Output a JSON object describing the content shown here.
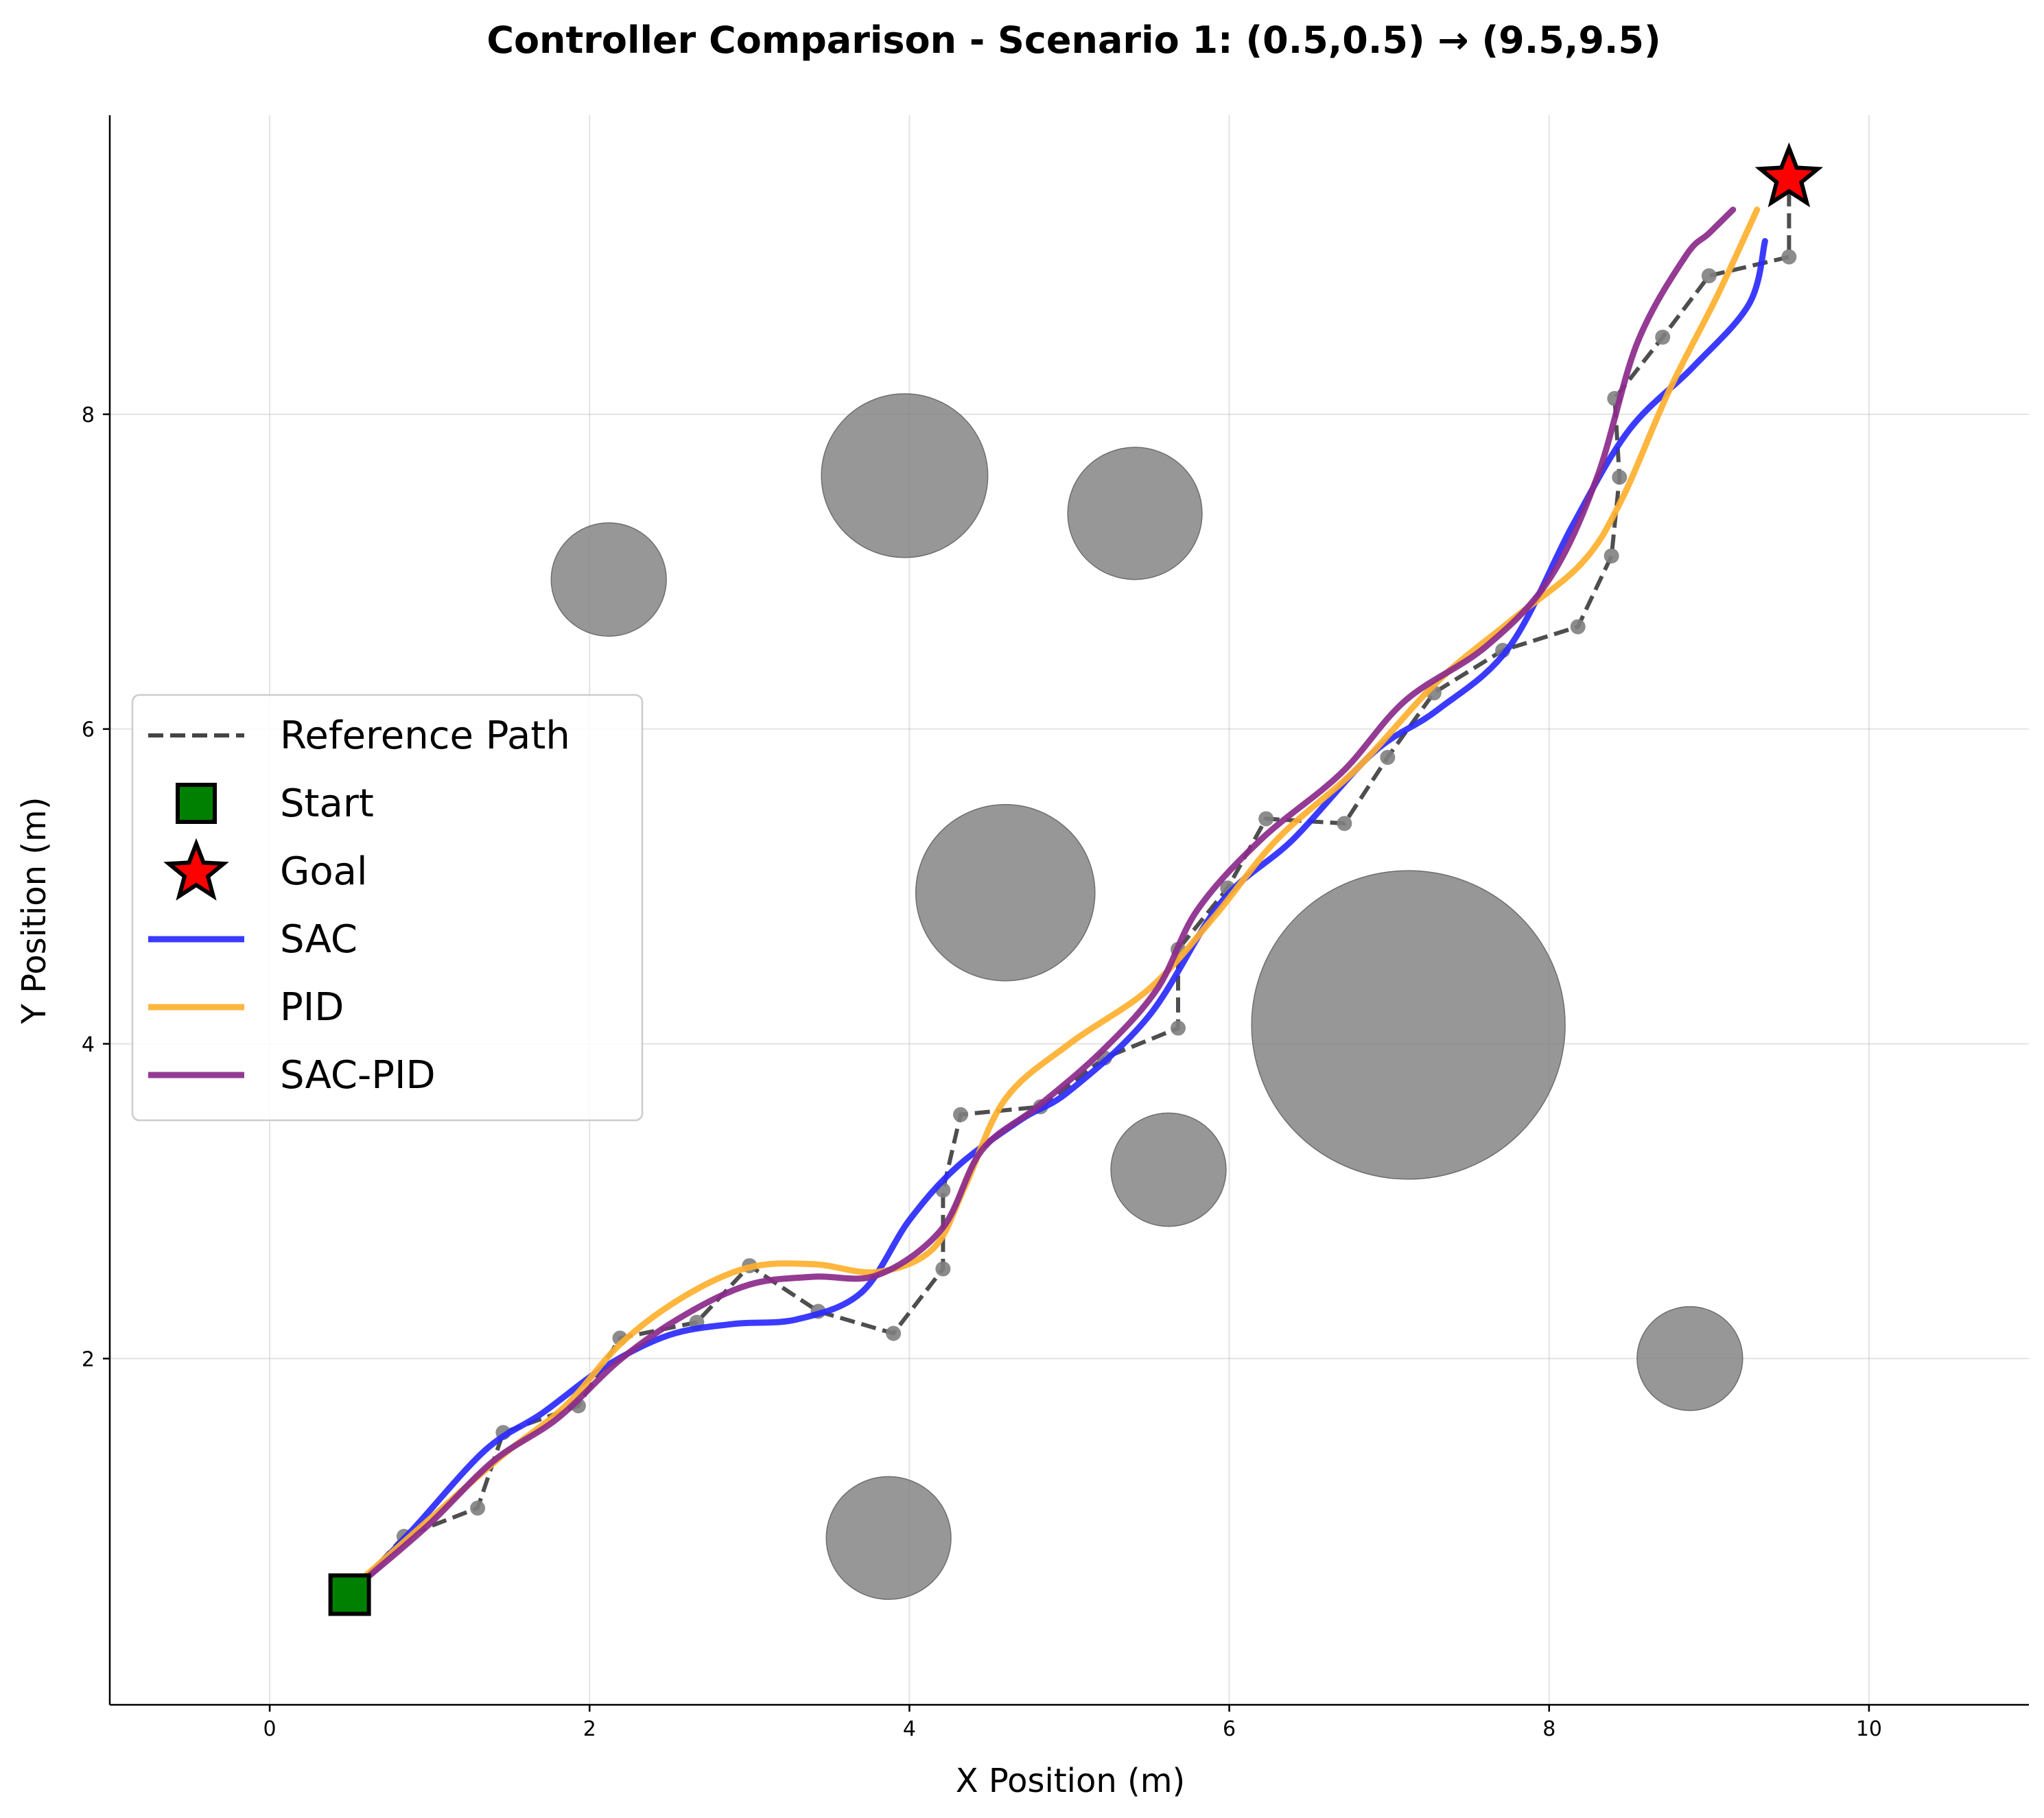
{
  "chart_data": {
    "type": "line",
    "title": "Controller Comparison - Scenario 1: (0.5,0.5) → (9.5,9.5)",
    "xlabel": "X Position (m)",
    "ylabel": "Y Position (m)",
    "xlim": [
      -1,
      11
    ],
    "ylim": [
      -0.2,
      9.9
    ],
    "xticks": [
      0,
      2,
      4,
      6,
      8,
      10
    ],
    "yticks": [
      2,
      4,
      6,
      8
    ],
    "grid": true,
    "legend_position": "center-left",
    "colors": {
      "reference": "#444444",
      "waypoint": "#808080",
      "start": "#008000",
      "goal": "#ff0000",
      "sac": "#2a2aff",
      "pid": "#ffb02e",
      "sac_pid": "#8b2a8b",
      "obstacle": "#808080"
    },
    "legend": [
      {
        "key": "reference",
        "label": "Reference Path",
        "style": "dashed"
      },
      {
        "key": "start",
        "label": "Start",
        "style": "square"
      },
      {
        "key": "goal",
        "label": "Goal",
        "style": "star"
      },
      {
        "key": "sac",
        "label": "SAC",
        "style": "line"
      },
      {
        "key": "pid",
        "label": "PID",
        "style": "line"
      },
      {
        "key": "sac_pid",
        "label": "SAC-PID",
        "style": "line"
      }
    ],
    "start": [
      0.5,
      0.5
    ],
    "goal": [
      9.5,
      9.5
    ],
    "obstacles": [
      {
        "x": 2.12,
        "y": 6.95,
        "r": 0.36
      },
      {
        "x": 3.97,
        "y": 7.61,
        "r": 0.52
      },
      {
        "x": 5.41,
        "y": 7.37,
        "r": 0.42
      },
      {
        "x": 4.6,
        "y": 4.96,
        "r": 0.56
      },
      {
        "x": 7.12,
        "y": 4.12,
        "r": 0.98
      },
      {
        "x": 5.62,
        "y": 3.2,
        "r": 0.36
      },
      {
        "x": 8.88,
        "y": 2.0,
        "r": 0.33
      },
      {
        "x": 3.87,
        "y": 0.86,
        "r": 0.39
      }
    ],
    "series": [
      {
        "name": "Reference Path",
        "key": "reference",
        "points": [
          [
            0.5,
            0.5
          ],
          [
            0.84,
            0.87
          ],
          [
            1.3,
            1.05
          ],
          [
            1.46,
            1.53
          ],
          [
            1.93,
            1.7
          ],
          [
            2.19,
            2.13
          ],
          [
            2.67,
            2.23
          ],
          [
            3.0,
            2.59
          ],
          [
            3.43,
            2.3
          ],
          [
            3.9,
            2.16
          ],
          [
            4.21,
            2.57
          ],
          [
            4.21,
            3.07
          ],
          [
            4.32,
            3.55
          ],
          [
            4.82,
            3.6
          ],
          [
            5.22,
            3.91
          ],
          [
            5.68,
            4.1
          ],
          [
            5.68,
            4.6
          ],
          [
            5.99,
            4.99
          ],
          [
            6.23,
            5.43
          ],
          [
            6.72,
            5.4
          ],
          [
            6.99,
            5.82
          ],
          [
            7.28,
            6.23
          ],
          [
            7.71,
            6.5
          ],
          [
            8.18,
            6.65
          ],
          [
            8.39,
            7.1
          ],
          [
            8.44,
            7.6
          ],
          [
            8.41,
            8.1
          ],
          [
            8.71,
            8.49
          ],
          [
            9.0,
            8.88
          ],
          [
            9.5,
            9.0
          ],
          [
            9.5,
            9.5
          ]
        ]
      },
      {
        "name": "SAC",
        "key": "sac",
        "points": [
          [
            0.6,
            0.6
          ],
          [
            0.9,
            0.92
          ],
          [
            1.35,
            1.42
          ],
          [
            1.7,
            1.65
          ],
          [
            2.1,
            1.95
          ],
          [
            2.5,
            2.15
          ],
          [
            2.9,
            2.22
          ],
          [
            3.3,
            2.25
          ],
          [
            3.7,
            2.42
          ],
          [
            4.0,
            2.88
          ],
          [
            4.3,
            3.22
          ],
          [
            4.7,
            3.52
          ],
          [
            5.0,
            3.7
          ],
          [
            5.5,
            4.18
          ],
          [
            5.95,
            4.9
          ],
          [
            6.4,
            5.3
          ],
          [
            6.9,
            5.85
          ],
          [
            7.3,
            6.12
          ],
          [
            7.75,
            6.52
          ],
          [
            8.15,
            7.3
          ],
          [
            8.5,
            7.9
          ],
          [
            8.9,
            8.3
          ],
          [
            9.25,
            8.7
          ],
          [
            9.35,
            9.1
          ]
        ]
      },
      {
        "name": "PID",
        "key": "pid",
        "points": [
          [
            0.6,
            0.62
          ],
          [
            1.0,
            0.98
          ],
          [
            1.45,
            1.38
          ],
          [
            1.85,
            1.7
          ],
          [
            2.2,
            2.1
          ],
          [
            2.6,
            2.4
          ],
          [
            3.0,
            2.58
          ],
          [
            3.4,
            2.6
          ],
          [
            3.8,
            2.55
          ],
          [
            4.15,
            2.7
          ],
          [
            4.35,
            3.1
          ],
          [
            4.6,
            3.65
          ],
          [
            5.0,
            4.0
          ],
          [
            5.5,
            4.35
          ],
          [
            5.9,
            4.8
          ],
          [
            6.3,
            5.3
          ],
          [
            6.8,
            5.75
          ],
          [
            7.3,
            6.3
          ],
          [
            7.75,
            6.68
          ],
          [
            8.2,
            7.05
          ],
          [
            8.45,
            7.45
          ],
          [
            8.75,
            8.15
          ],
          [
            9.05,
            8.75
          ],
          [
            9.3,
            9.3
          ]
        ]
      },
      {
        "name": "SAC-PID",
        "key": "sac_pid",
        "points": [
          [
            0.6,
            0.6
          ],
          [
            1.0,
            0.95
          ],
          [
            1.4,
            1.35
          ],
          [
            1.8,
            1.62
          ],
          [
            2.2,
            2.0
          ],
          [
            2.6,
            2.28
          ],
          [
            3.0,
            2.47
          ],
          [
            3.4,
            2.52
          ],
          [
            3.8,
            2.53
          ],
          [
            4.2,
            2.82
          ],
          [
            4.45,
            3.32
          ],
          [
            4.8,
            3.6
          ],
          [
            5.2,
            3.95
          ],
          [
            5.55,
            4.35
          ],
          [
            5.8,
            4.85
          ],
          [
            6.2,
            5.3
          ],
          [
            6.7,
            5.72
          ],
          [
            7.1,
            6.18
          ],
          [
            7.6,
            6.52
          ],
          [
            8.0,
            6.95
          ],
          [
            8.3,
            7.6
          ],
          [
            8.55,
            8.45
          ],
          [
            8.85,
            9.0
          ],
          [
            9.0,
            9.15
          ],
          [
            9.15,
            9.3
          ]
        ]
      }
    ]
  }
}
